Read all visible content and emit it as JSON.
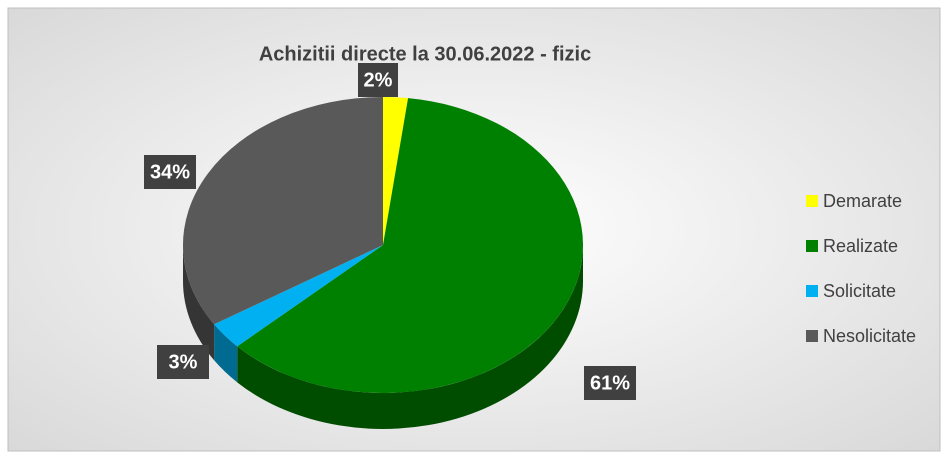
{
  "chart_data": {
    "type": "pie",
    "title": "Achizitii directe la 30.06.2022 - fizic",
    "categories": [
      "Demarate",
      "Realizate",
      "Solicitate",
      "Nesolicitate"
    ],
    "values": [
      2,
      61,
      3,
      34
    ],
    "value_labels": [
      "2%",
      "61%",
      "3%",
      "34%"
    ],
    "colors": [
      "#ffff00",
      "#008000",
      "#00b0f0",
      "#595959"
    ],
    "legend": "right"
  }
}
